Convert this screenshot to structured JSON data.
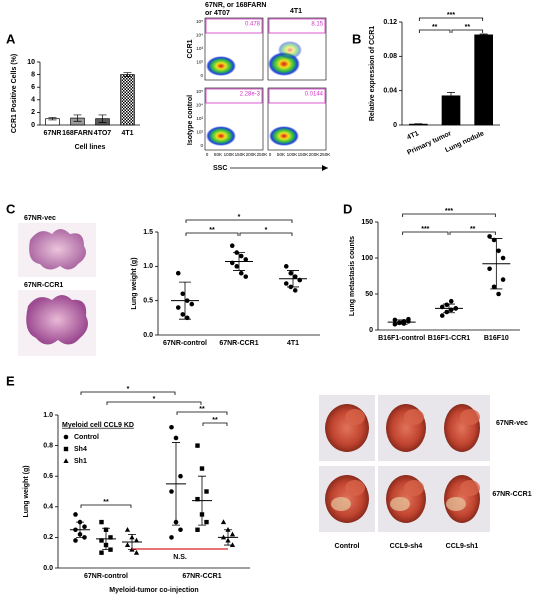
{
  "figure": {
    "panel_labels": [
      "A",
      "B",
      "C",
      "D",
      "E"
    ],
    "flow": {
      "col_labels": [
        [
          "67NR, or 168FARN",
          "or 4T07"
        ],
        [
          "4T1"
        ]
      ],
      "row_labels": [
        "CCR1",
        "Isotype control"
      ],
      "gates": [
        "0.478",
        "8.15",
        "2.28e-3",
        "0.0144"
      ],
      "x_ticks": [
        "0",
        "50K",
        "100K",
        "150K",
        "200K",
        "250K"
      ],
      "y_ticks": [
        "10⁵",
        "10⁴",
        "10³",
        "10²",
        "0"
      ],
      "x_label": "SSC"
    },
    "histology_labels": [
      "67NR-vec",
      "67NR-CCR1"
    ],
    "photo_rows": [
      "67NR-vec",
      "67NR-CCR1"
    ],
    "photo_cols": [
      "Control",
      "CCL9-sh4",
      "CCL9-sh1"
    ]
  },
  "chart_data": [
    {
      "type": "bar",
      "categories": [
        "67NR",
        "168FARN",
        "4TO7",
        "4T1"
      ],
      "values": [
        1.0,
        1.1,
        1.0,
        8.0
      ],
      "errors": [
        0.2,
        0.5,
        0.6,
        0.3
      ],
      "colors": [
        "#ffffff",
        "#9a9a9a",
        "#5a5a5a",
        "#000000"
      ],
      "patterns": [
        null,
        null,
        null,
        "checker"
      ],
      "ylabel": "CCR1 Positive Cells (%)",
      "xlabel": "Cell lines",
      "ylim": [
        0,
        10
      ],
      "yticks": [
        0,
        2,
        4,
        6,
        8,
        10
      ],
      "brackets": []
    },
    {
      "type": "bar",
      "categories": [
        "4T1",
        "Primary tumor",
        "Lung nodule"
      ],
      "values": [
        0.001,
        0.034,
        0.105
      ],
      "errors": [
        0.0005,
        0.004,
        0.001
      ],
      "colors": [
        "#000000",
        "#000000",
        "#000000"
      ],
      "patterns": [
        null,
        null,
        null
      ],
      "ylabel": "Relative expression of CCR1",
      "ylim": [
        0,
        0.12
      ],
      "yticks": [
        0,
        0.04,
        0.08,
        0.12
      ],
      "brackets": [
        {
          "from": 0,
          "to": 2,
          "label": "***"
        },
        {
          "from": 0,
          "to": 1,
          "label": "**"
        },
        {
          "from": 1,
          "to": 2,
          "label": "**"
        }
      ]
    },
    {
      "type": "dot",
      "categories": [
        "67NR-control",
        "67NR-CCR1",
        "4T1"
      ],
      "points": [
        [
          0.9,
          0.6,
          0.5,
          0.45,
          0.4,
          0.3,
          0.25
        ],
        [
          1.3,
          1.2,
          1.15,
          1.1,
          1.05,
          1.0,
          0.9,
          0.85
        ],
        [
          1.0,
          0.9,
          0.85,
          0.8,
          0.75,
          0.7,
          0.65
        ]
      ],
      "mean": [
        0.5,
        1.07,
        0.82
      ],
      "sd": [
        0.27,
        0.13,
        0.12
      ],
      "color": "#000000",
      "ylabel": "Lung weight (g)",
      "ylim": [
        0,
        1.5
      ],
      "yticks": [
        {
          "value": 0,
          "label": "0.0"
        },
        0.5,
        {
          "value": 1,
          "label": "1.0"
        },
        1.5
      ],
      "brackets": [
        {
          "from": 0,
          "to": 2,
          "label": "*"
        },
        {
          "from": 0,
          "to": 1,
          "label": "**"
        },
        {
          "from": 1,
          "to": 2,
          "label": "*"
        }
      ]
    },
    {
      "type": "dot",
      "categories": [
        "B16F1-control",
        "B16F1-CCR1",
        "B16F10"
      ],
      "points": [
        [
          8,
          10,
          12,
          12,
          14,
          10,
          9,
          15
        ],
        [
          20,
          25,
          28,
          30,
          32,
          35,
          40,
          30
        ],
        [
          130,
          125,
          110,
          100,
          85,
          60,
          50,
          70
        ]
      ],
      "mean": [
        11,
        30,
        92
      ],
      "sd": [
        3,
        6,
        35
      ],
      "color": "#000000",
      "ylabel": "Lung metastasis counts",
      "ylim": [
        0,
        150
      ],
      "yticks": [
        0,
        50,
        100,
        150
      ],
      "brackets": [
        {
          "from": 0,
          "to": 2,
          "label": "***"
        },
        {
          "from": 0,
          "to": 1,
          "label": "***"
        },
        {
          "from": 1,
          "to": 2,
          "label": "**"
        }
      ]
    },
    {
      "type": "grouped_dot",
      "categories": [
        "67NR-control",
        "67NR-CCR1"
      ],
      "legend_title": "Myeloid cell CCL9 KD",
      "series": [
        {
          "name": "Control",
          "marker": "circle",
          "points": [
            [
              0.35,
              0.3,
              0.27,
              0.25,
              0.22,
              0.2,
              0.18
            ],
            [
              0.92,
              0.85,
              0.6,
              0.5,
              0.3,
              0.25,
              0.2
            ]
          ],
          "mean": [
            0.25,
            0.55
          ],
          "sd": [
            0.05,
            0.27
          ]
        },
        {
          "name": "Sh4",
          "marker": "square",
          "points": [
            [
              0.3,
              0.25,
              0.2,
              0.18,
              0.15,
              0.12,
              0.1
            ],
            [
              0.8,
              0.65,
              0.5,
              0.45,
              0.35,
              0.3,
              0.25
            ]
          ],
          "mean": [
            0.19,
            0.44
          ],
          "sd": [
            0.07,
            0.16
          ]
        },
        {
          "name": "Sh1",
          "marker": "triangle",
          "points": [
            [
              0.25,
              0.2,
              0.18,
              0.15,
              0.12,
              0.1
            ],
            [
              0.3,
              0.25,
              0.22,
              0.2,
              0.18,
              0.15
            ]
          ],
          "mean": [
            0.17,
            0.2
          ],
          "sd": [
            0.05,
            0.05
          ]
        }
      ],
      "ylabel": "Lung weight (g)",
      "xlabel": "Myeloid-tumor co-injection",
      "ylim": [
        0,
        1
      ],
      "yticks": [
        {
          "value": 0,
          "label": "0.0"
        },
        0.2,
        0.4,
        0.6,
        0.8,
        {
          "value": 1,
          "label": "1.0"
        }
      ],
      "brackets": [
        {
          "from": [
            0,
            0
          ],
          "to": [
            1,
            0
          ],
          "label": "*"
        },
        {
          "from": [
            0,
            1
          ],
          "to": [
            1,
            1
          ],
          "label": "*"
        },
        {
          "from": [
            1,
            0
          ],
          "to": [
            1,
            2
          ],
          "label": "**"
        },
        {
          "from": [
            1,
            1
          ],
          "to": [
            1,
            2
          ],
          "label": "**"
        },
        {
          "from": [
            0,
            0
          ],
          "to": [
            0,
            2
          ],
          "label": "**"
        },
        {
          "from": [
            0,
            2
          ],
          "to": [
            1,
            2
          ],
          "label": "N.S.",
          "color": "#d62020"
        }
      ]
    }
  ]
}
